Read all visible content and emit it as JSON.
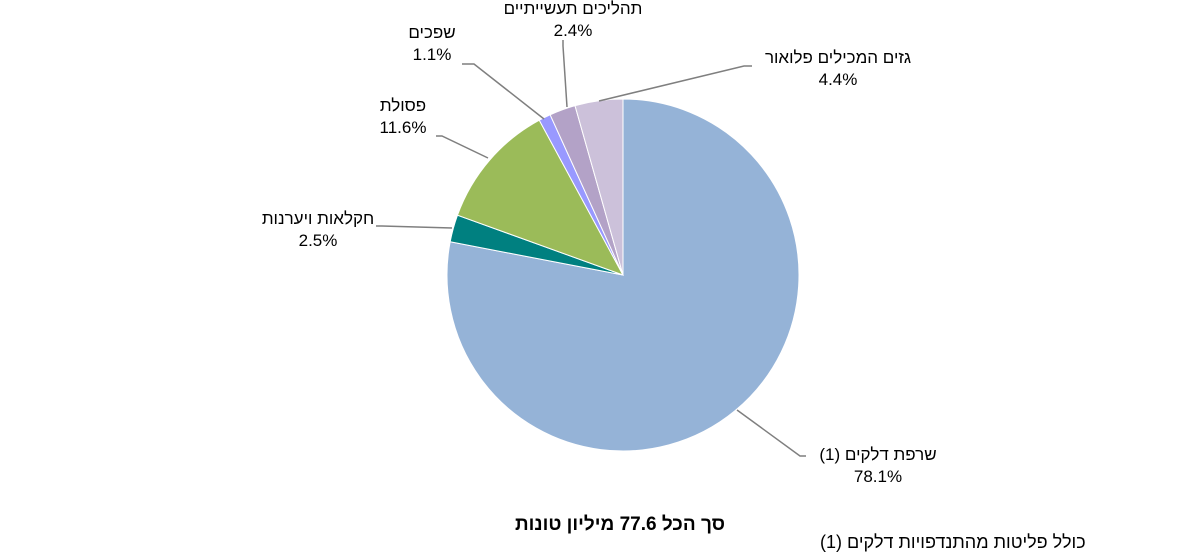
{
  "chart_data": {
    "type": "pie",
    "slices": [
      {
        "label": "שרפת דלקים (1)",
        "value": 78.1,
        "value_label": "78.1%",
        "color": "#95B3D7"
      },
      {
        "label": "חקלאות ויערנות",
        "value": 2.5,
        "value_label": "2.5%",
        "color": "#008080"
      },
      {
        "label": "פסולת",
        "value": 11.6,
        "value_label": "11.6%",
        "color": "#9BBB59"
      },
      {
        "label": "שפכים",
        "value": 1.1,
        "value_label": "1.1%",
        "color": "#9999FF"
      },
      {
        "label": "תהליכים תעשייתיים",
        "value": 2.4,
        "value_label": "2.4%",
        "color": "#B3A2C7"
      },
      {
        "label": "גזים המכילים פלואור",
        "value": 4.4,
        "value_label": "4.4%",
        "color": "#CCC1DA"
      }
    ],
    "start_angle_deg": 0,
    "direction": "clockwise",
    "total_label": "סך הכל 77.6 מיליון טונות",
    "footnote": "כולל פליטות מהתנדפויות דלקים (1)"
  }
}
